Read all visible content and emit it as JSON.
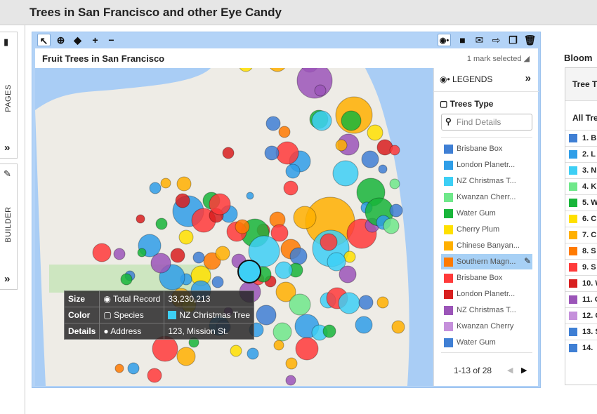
{
  "header": {
    "title": "Trees in San Francisco and other Eye Candy"
  },
  "sidebar": {
    "pages_label": "PAGES",
    "builder_label": "BUILDER"
  },
  "toolbar": {
    "left": [
      "select",
      "zoom",
      "center",
      "+",
      "−"
    ],
    "right": [
      "legend",
      "comment",
      "email",
      "export",
      "copy",
      "delete"
    ]
  },
  "chart": {
    "title": "Fruit Trees in San Francisco",
    "selection_status": "1 mark selected"
  },
  "legend": {
    "header": "LEGENDS",
    "group_title": "Trees Type",
    "search_placeholder": "Find Details",
    "items": [
      {
        "label": "Brisbane Box",
        "color": "#3f7fd4"
      },
      {
        "label": "London Planetr...",
        "color": "#2f9ee8"
      },
      {
        "label": "NZ Christmas T...",
        "color": "#3dcff5"
      },
      {
        "label": "Kwanzan Cherr...",
        "color": "#6fe88a"
      },
      {
        "label": "Water Gum",
        "color": "#18b53a"
      },
      {
        "label": "Cherry Plum",
        "color": "#ffe000"
      },
      {
        "label": "Chinese Banyan...",
        "color": "#ffb000"
      },
      {
        "label": "Southern Magn...",
        "color": "#ff7a00"
      },
      {
        "label": "Brisbane Box",
        "color": "#ff3a3a"
      },
      {
        "label": "London Planetr...",
        "color": "#d81f1f"
      },
      {
        "label": "NZ Christmas T...",
        "color": "#9b55b8"
      },
      {
        "label": "Kwanzan Cherry",
        "color": "#c590db"
      },
      {
        "label": "Water Gum",
        "color": "#3f7fd4"
      }
    ],
    "selected_index": 7,
    "pagination": "1-13 of 28"
  },
  "tooltip": {
    "rows": [
      {
        "key": "Size",
        "field": "Total Record",
        "value": "33,230,213"
      },
      {
        "key": "Color",
        "field": "Species",
        "value": "NZ Christmas Tree"
      },
      {
        "key": "Details",
        "field": "Address",
        "value": "123, Mission St."
      }
    ]
  },
  "right_panel": {
    "title": "Bloom",
    "header": "Tree T",
    "all_row": "All Tre",
    "rows": [
      "1. B",
      "2. L",
      "3. N",
      "4. K",
      "5. W",
      "6. C",
      "7. C",
      "8. S",
      "9. S",
      "10. W",
      "11. C",
      "12. C",
      "13. S",
      "14."
    ]
  }
}
